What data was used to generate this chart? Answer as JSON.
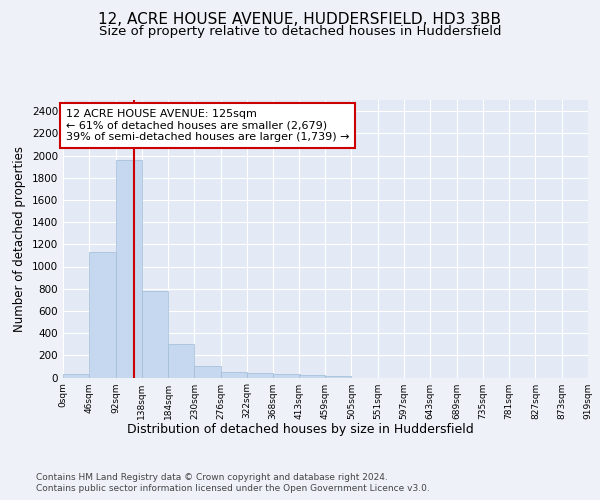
{
  "title1": "12, ACRE HOUSE AVENUE, HUDDERSFIELD, HD3 3BB",
  "title2": "Size of property relative to detached houses in Huddersfield",
  "xlabel": "Distribution of detached houses by size in Huddersfield",
  "ylabel": "Number of detached properties",
  "footer1": "Contains HM Land Registry data © Crown copyright and database right 2024.",
  "footer2": "Contains public sector information licensed under the Open Government Licence v3.0.",
  "bar_edges": [
    0,
    46,
    92,
    138,
    184,
    230,
    276,
    322,
    368,
    413,
    459,
    505,
    551,
    597,
    643,
    689,
    735,
    781,
    827,
    873,
    919
  ],
  "bar_heights": [
    35,
    1135,
    1960,
    775,
    300,
    105,
    50,
    45,
    35,
    20,
    15,
    0,
    0,
    0,
    0,
    0,
    0,
    0,
    0,
    0
  ],
  "bar_color": "#c5d8f0",
  "bar_edgecolor": "#a0bcd8",
  "property_size": 125,
  "vline_color": "#cc0000",
  "annotation_text": "12 ACRE HOUSE AVENUE: 125sqm\n← 61% of detached houses are smaller (2,679)\n39% of semi-detached houses are larger (1,739) →",
  "annotation_box_edgecolor": "#cc0000",
  "annotation_box_facecolor": "#ffffff",
  "ylim": [
    0,
    2500
  ],
  "yticks": [
    0,
    200,
    400,
    600,
    800,
    1000,
    1200,
    1400,
    1600,
    1800,
    2000,
    2200,
    2400
  ],
  "tick_labels": [
    "0sqm",
    "46sqm",
    "92sqm",
    "138sqm",
    "184sqm",
    "230sqm",
    "276sqm",
    "322sqm",
    "368sqm",
    "413sqm",
    "459sqm",
    "505sqm",
    "551sqm",
    "597sqm",
    "643sqm",
    "689sqm",
    "735sqm",
    "781sqm",
    "827sqm",
    "873sqm",
    "919sqm"
  ],
  "background_color": "#eef2f8",
  "axes_facecolor": "#e4eaf5",
  "grid_color": "#ffffff",
  "title1_fontsize": 11,
  "title2_fontsize": 9.5,
  "xlabel_fontsize": 9,
  "ylabel_fontsize": 8.5,
  "annotation_fontsize": 8,
  "footer_fontsize": 6.5
}
